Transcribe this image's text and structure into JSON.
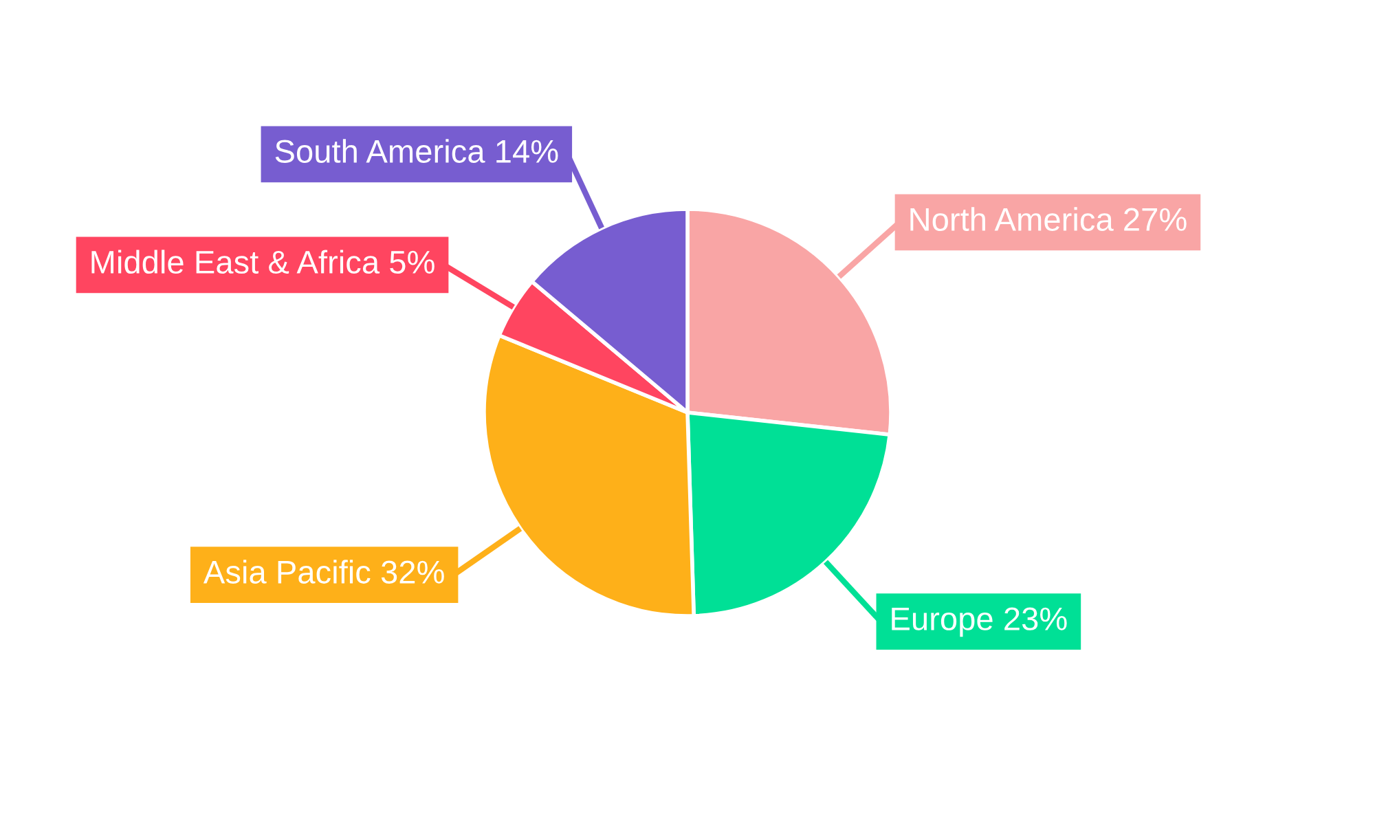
{
  "chart_data": {
    "type": "pie",
    "categories": [
      "North America",
      "Europe",
      "Asia Pacific",
      "Middle East & Africa",
      "South America"
    ],
    "values": [
      27,
      23,
      32,
      5,
      14
    ],
    "value_labels": [
      "27%",
      "23%",
      "32%",
      "5%",
      "14%"
    ],
    "colors": [
      "#f9a5a5",
      "#00e096",
      "#feb019",
      "#ff4560",
      "#775dd0"
    ],
    "legend": false
  }
}
